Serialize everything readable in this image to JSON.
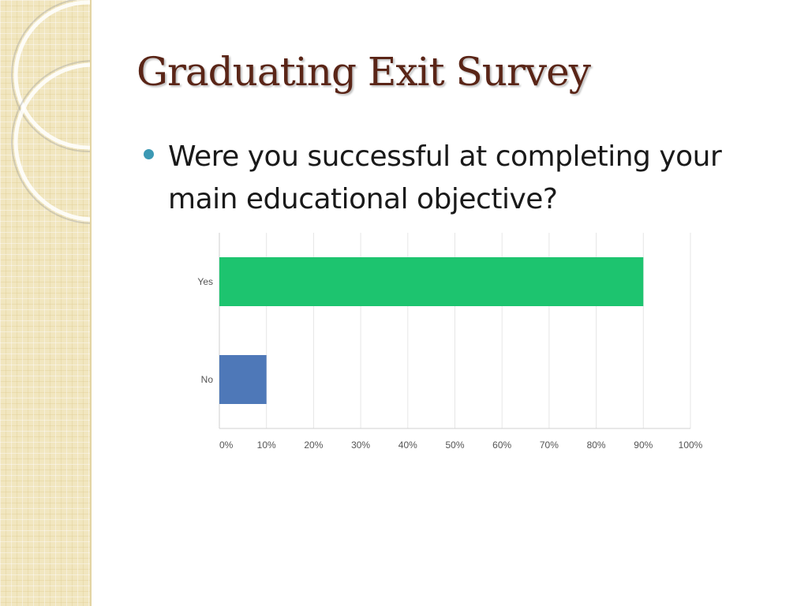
{
  "slide": {
    "title": "Graduating Exit Survey",
    "bullet": "Were you successful at completing your main educational objective?"
  },
  "theme": {
    "title_color": "#5a2517",
    "bullet_color": "#3c99b4",
    "strip_color": "#f1e6bf"
  },
  "chart_data": {
    "type": "bar",
    "orientation": "horizontal",
    "categories": [
      "Yes",
      "No"
    ],
    "values": [
      90,
      10
    ],
    "colors": [
      "#1dc46f",
      "#4e78b8"
    ],
    "xlim": [
      0,
      100
    ],
    "xticks": [
      "0%",
      "10%",
      "20%",
      "30%",
      "40%",
      "50%",
      "60%",
      "70%",
      "80%",
      "90%",
      "100%"
    ],
    "grid": true,
    "title": "",
    "xlabel": "",
    "ylabel": ""
  }
}
